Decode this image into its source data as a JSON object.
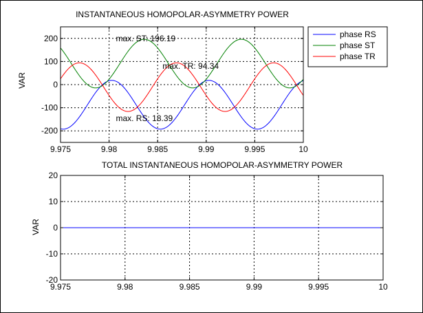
{
  "chart_data": [
    {
      "type": "line",
      "title": "INSTANTANEOUS HOMOPOLAR-ASYMMETRY POWER",
      "ylabel": "VAR",
      "xlim": [
        9.975,
        10
      ],
      "ylim": [
        -250,
        250
      ],
      "xticks": [
        "9.975",
        "9.98",
        "9.985",
        "9.99",
        "9.995",
        "10"
      ],
      "yticks": [
        "200",
        "100",
        "0",
        "-100",
        "-200"
      ],
      "xtick_values": [
        9.975,
        9.98,
        9.985,
        9.99,
        9.995,
        10
      ],
      "ytick_values": [
        200,
        100,
        0,
        -100,
        -200
      ],
      "grid": true,
      "legend": "top-right",
      "legend_outside": true,
      "series": [
        {
          "name": "phase RS",
          "color": "#0000ff",
          "mean": -87.1,
          "amp": 105.5,
          "phase_deg": 80
        },
        {
          "name": "phase ST",
          "color": "#008000",
          "mean": 91.0,
          "amp": 105.2,
          "phase_deg": -40
        },
        {
          "name": "phase TR",
          "color": "#ff0000",
          "mean": -10.9,
          "amp": 105.2,
          "phase_deg": -160
        }
      ],
      "period": 0.01,
      "annotations": [
        {
          "text": "max. ST: 196.19",
          "x": 9.9807,
          "y": 188
        },
        {
          "text": "max. TR: 94.34",
          "x": 9.9855,
          "y": 68
        },
        {
          "text": "max. RS: 18.39",
          "x": 9.9807,
          "y": -158
        }
      ]
    },
    {
      "type": "line",
      "title": "TOTAL INSTANTANEOUS HOMOPOLAR-ASYMMETRY POWER",
      "ylabel": "VAR",
      "xlim": [
        9.975,
        10
      ],
      "ylim": [
        -20,
        20
      ],
      "xticks": [
        "9.975",
        "9.98",
        "9.985",
        "9.99",
        "9.995",
        "10"
      ],
      "yticks": [
        "20",
        "10",
        "0",
        "-10",
        "-20"
      ],
      "xtick_values": [
        9.975,
        9.98,
        9.985,
        9.99,
        9.995,
        10
      ],
      "ytick_values": [
        20,
        10,
        0,
        -10,
        -20
      ],
      "grid": true,
      "series": [
        {
          "color": "#0000ff",
          "x": [
            9.975,
            10
          ],
          "y": [
            0,
            0
          ]
        }
      ]
    }
  ]
}
